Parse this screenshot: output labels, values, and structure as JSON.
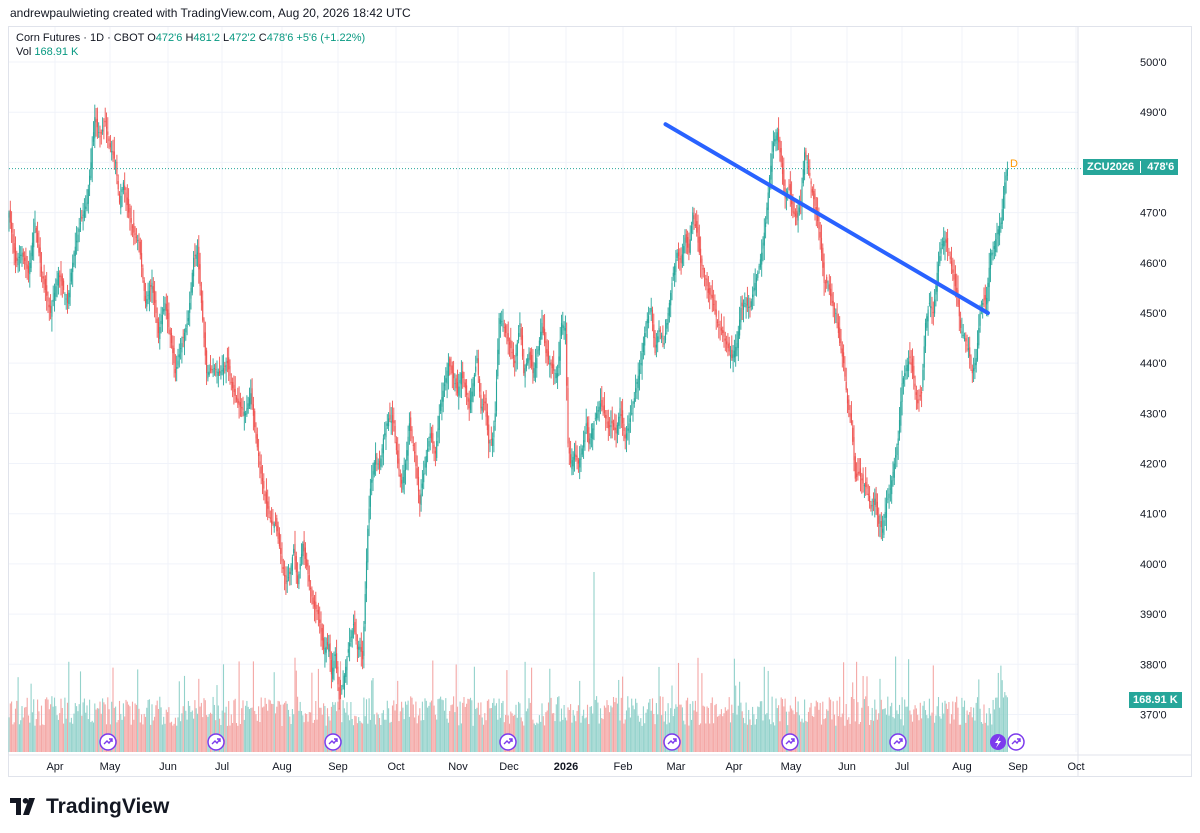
{
  "header": {
    "credit": "andrewpaulwieting created with TradingView.com, Aug 20, 2026 18:42 UTC"
  },
  "legend": {
    "symbol": "Corn Futures · 1D · CBOT",
    "open_key": "O",
    "open": "472'6",
    "high_key": "H",
    "high": "481'2",
    "low_key": "L",
    "low": "472'2",
    "close_key": "C",
    "close": "478'6",
    "change": "+5'6 (+1.22%)",
    "vol_key": "Vol",
    "vol": "168.91 K"
  },
  "price_tag": {
    "symbol": "ZCU2026",
    "price": "478'6",
    "color": "#26a69a"
  },
  "volume_tag": {
    "value": "168.91 K",
    "color": "#26a69a"
  },
  "marker_letter": "D",
  "footer": {
    "brand": "TradingView",
    "logo_icon": "tradingview-logo-icon"
  },
  "colors": {
    "up": "#26a69a",
    "down": "#ef5350",
    "trendline": "#2962ff",
    "vol_up": "#93d2cb",
    "vol_down": "#f4a7a5"
  },
  "chart_data": {
    "type": "candlestick",
    "title": "Corn Futures · 1D · CBOT",
    "price_axis": {
      "ticks": [
        "500'0",
        "490'0",
        "480'0",
        "470'0",
        "460'0",
        "450'0",
        "440'0",
        "430'0",
        "420'0",
        "410'0",
        "400'0",
        "390'0",
        "380'0",
        "370'0"
      ],
      "range": [
        367,
        502
      ]
    },
    "date_axis": {
      "ticks": [
        {
          "label": "Apr"
        },
        {
          "label": "May"
        },
        {
          "label": "Jun"
        },
        {
          "label": "Jul"
        },
        {
          "label": "Aug"
        },
        {
          "label": "Sep"
        },
        {
          "label": "Oct"
        },
        {
          "label": "Nov"
        },
        {
          "label": "Dec"
        },
        {
          "label": "2026",
          "bold": true
        },
        {
          "label": "Feb"
        },
        {
          "label": "Mar"
        },
        {
          "label": "Apr"
        },
        {
          "label": "May"
        },
        {
          "label": "Jun"
        },
        {
          "label": "Jul"
        },
        {
          "label": "Aug"
        },
        {
          "label": "Sep"
        },
        {
          "label": "Oct"
        }
      ]
    },
    "closes": [
      [
        0,
        470
      ],
      [
        5,
        460
      ],
      [
        10,
        462
      ],
      [
        15,
        458
      ],
      [
        20,
        468
      ],
      [
        25,
        458
      ],
      [
        32,
        450
      ],
      [
        38,
        458
      ],
      [
        45,
        452
      ],
      [
        50,
        462
      ],
      [
        55,
        468
      ],
      [
        60,
        472
      ],
      [
        63,
        480
      ],
      [
        66,
        489
      ],
      [
        70,
        485
      ],
      [
        74,
        488
      ],
      [
        78,
        483
      ],
      [
        82,
        480
      ],
      [
        85,
        472
      ],
      [
        88,
        476
      ],
      [
        92,
        470
      ],
      [
        96,
        466
      ],
      [
        100,
        464
      ],
      [
        105,
        452
      ],
      [
        110,
        456
      ],
      [
        115,
        446
      ],
      [
        120,
        452
      ],
      [
        125,
        444
      ],
      [
        128,
        438
      ],
      [
        132,
        443
      ],
      [
        138,
        449
      ],
      [
        142,
        461
      ],
      [
        145,
        462
      ],
      [
        148,
        452
      ],
      [
        152,
        438
      ],
      [
        158,
        439
      ],
      [
        162,
        438
      ],
      [
        168,
        440
      ],
      [
        172,
        435
      ],
      [
        176,
        432
      ],
      [
        182,
        430
      ],
      [
        186,
        434
      ],
      [
        190,
        425
      ],
      [
        194,
        418
      ],
      [
        198,
        412
      ],
      [
        202,
        408
      ],
      [
        205,
        408
      ],
      [
        209,
        402
      ],
      [
        213,
        396
      ],
      [
        216,
        398
      ],
      [
        219,
        403
      ],
      [
        222,
        396
      ],
      [
        226,
        404
      ],
      [
        230,
        398
      ],
      [
        234,
        392
      ],
      [
        238,
        390
      ],
      [
        242,
        383
      ],
      [
        246,
        384
      ],
      [
        248,
        378
      ],
      [
        251,
        382
      ],
      [
        254,
        373
      ],
      [
        257,
        376
      ],
      [
        261,
        383
      ],
      [
        265,
        388
      ],
      [
        268,
        383
      ],
      [
        270,
        384
      ],
      [
        272,
        381
      ],
      [
        276,
        407
      ],
      [
        278,
        415
      ],
      [
        282,
        422
      ],
      [
        285,
        419
      ],
      [
        288,
        425
      ],
      [
        292,
        429
      ],
      [
        296,
        428
      ],
      [
        299,
        420
      ],
      [
        302,
        416
      ],
      [
        305,
        420
      ],
      [
        308,
        428
      ],
      [
        312,
        422
      ],
      [
        316,
        412
      ],
      [
        320,
        420
      ],
      [
        324,
        426
      ],
      [
        328,
        422
      ],
      [
        332,
        432
      ],
      [
        336,
        437
      ],
      [
        338,
        440
      ],
      [
        341,
        438
      ],
      [
        345,
        434
      ],
      [
        348,
        438
      ],
      [
        351,
        435
      ],
      [
        354,
        431
      ],
      [
        357,
        436
      ],
      [
        360,
        441
      ],
      [
        363,
        431
      ],
      [
        366,
        432
      ],
      [
        369,
        424
      ],
      [
        372,
        425
      ],
      [
        374,
        430
      ],
      [
        377,
        449
      ],
      [
        380,
        448
      ],
      [
        383,
        445
      ],
      [
        386,
        443
      ],
      [
        389,
        440
      ],
      [
        393,
        448
      ],
      [
        396,
        438
      ],
      [
        400,
        442
      ],
      [
        403,
        438
      ],
      [
        406,
        441
      ],
      [
        410,
        448
      ],
      [
        413,
        442
      ],
      [
        416,
        440
      ],
      [
        420,
        438
      ],
      [
        422,
        438
      ],
      [
        425,
        448
      ],
      [
        428,
        447
      ],
      [
        430,
        424
      ],
      [
        432,
        420
      ],
      [
        435,
        422
      ],
      [
        438,
        420
      ],
      [
        441,
        423
      ],
      [
        444,
        428
      ],
      [
        446,
        424
      ],
      [
        449,
        427
      ],
      [
        452,
        430
      ],
      [
        455,
        432
      ],
      [
        458,
        430
      ],
      [
        461,
        427
      ],
      [
        464,
        428
      ],
      [
        467,
        426
      ],
      [
        470,
        431
      ],
      [
        474,
        425
      ],
      [
        477,
        428
      ],
      [
        480,
        431
      ],
      [
        482,
        435
      ],
      [
        486,
        440
      ],
      [
        490,
        448
      ],
      [
        494,
        451
      ],
      [
        497,
        442
      ],
      [
        500,
        447
      ],
      [
        504,
        444
      ],
      [
        508,
        452
      ],
      [
        511,
        458
      ],
      [
        514,
        462
      ],
      [
        517,
        460
      ],
      [
        520,
        465
      ],
      [
        523,
        462
      ],
      [
        526,
        470
      ],
      [
        529,
        466
      ],
      [
        532,
        460
      ],
      [
        535,
        458
      ],
      [
        538,
        454
      ],
      [
        541,
        453
      ],
      [
        545,
        448
      ],
      [
        549,
        446
      ],
      [
        553,
        443
      ],
      [
        556,
        441
      ],
      [
        560,
        444
      ],
      [
        563,
        451
      ],
      [
        566,
        452
      ],
      [
        570,
        451
      ],
      [
        573,
        455
      ],
      [
        576,
        458
      ],
      [
        579,
        462
      ],
      [
        582,
        468
      ],
      [
        585,
        477
      ],
      [
        588,
        484
      ],
      [
        591,
        486
      ],
      [
        594,
        480
      ],
      [
        597,
        473
      ],
      [
        600,
        475
      ],
      [
        603,
        470
      ],
      [
        606,
        469
      ],
      [
        609,
        472
      ],
      [
        612,
        482
      ],
      [
        615,
        479
      ],
      [
        618,
        474
      ],
      [
        621,
        470
      ],
      [
        624,
        465
      ],
      [
        627,
        456
      ],
      [
        630,
        456
      ],
      [
        633,
        452
      ],
      [
        636,
        450
      ],
      [
        639,
        444
      ],
      [
        642,
        440
      ],
      [
        645,
        432
      ],
      [
        648,
        428
      ],
      [
        651,
        417
      ],
      [
        654,
        418
      ],
      [
        657,
        416
      ],
      [
        660,
        415
      ],
      [
        663,
        411
      ],
      [
        666,
        413
      ],
      [
        669,
        408
      ],
      [
        672,
        407
      ],
      [
        675,
        412
      ],
      [
        678,
        415
      ],
      [
        681,
        420
      ],
      [
        684,
        425
      ],
      [
        687,
        436
      ],
      [
        690,
        439
      ],
      [
        693,
        441
      ],
      [
        696,
        437
      ],
      [
        699,
        432
      ],
      [
        702,
        434
      ],
      [
        705,
        448
      ],
      [
        708,
        452
      ],
      [
        711,
        450
      ],
      [
        714,
        458
      ],
      [
        717,
        463
      ],
      [
        720,
        465
      ],
      [
        723,
        462
      ],
      [
        726,
        458
      ],
      [
        729,
        454
      ],
      [
        732,
        447
      ],
      [
        735,
        445
      ],
      [
        738,
        443
      ],
      [
        741,
        438
      ],
      [
        744,
        441
      ],
      [
        747,
        450
      ],
      [
        749,
        452
      ],
      [
        752,
        453
      ],
      [
        755,
        462
      ],
      [
        757,
        462
      ],
      [
        760,
        466
      ],
      [
        763,
        468
      ],
      [
        766,
        476
      ],
      [
        768,
        478.75
      ]
    ],
    "trendline": {
      "start": {
        "t": 505,
        "price": 487.6
      },
      "end": {
        "t": 753,
        "price": 450
      }
    }
  }
}
